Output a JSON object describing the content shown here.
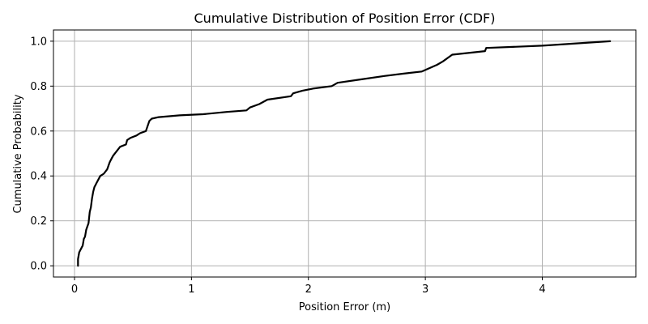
{
  "chart_data": {
    "type": "line",
    "title": "Cumulative Distribution of Position Error (CDF)",
    "xlabel": "Position Error (m)",
    "ylabel": "Cumulative Probability",
    "xlim": [
      -0.18,
      4.8
    ],
    "ylim": [
      -0.05,
      1.05
    ],
    "xticks": [
      0,
      1,
      2,
      3,
      4
    ],
    "yticks": [
      0.0,
      0.2,
      0.4,
      0.6,
      0.8,
      1.0
    ],
    "xtick_labels": [
      "0",
      "1",
      "2",
      "3",
      "4"
    ],
    "ytick_labels": [
      "0.0",
      "0.2",
      "0.4",
      "0.6",
      "0.8",
      "1.0"
    ],
    "grid": true,
    "line_color": "#000000",
    "grid_color": "#b0b0b0",
    "series": [
      {
        "x": [
          0.03,
          0.03,
          0.04,
          0.05,
          0.07,
          0.08,
          0.09,
          0.1,
          0.12,
          0.13,
          0.14,
          0.15,
          0.16,
          0.17,
          0.19,
          0.22,
          0.25,
          0.28,
          0.3,
          0.31,
          0.33,
          0.36,
          0.39,
          0.44,
          0.45,
          0.48,
          0.53,
          0.56,
          0.61,
          0.64,
          0.66,
          0.72,
          0.9,
          1.1,
          1.3,
          1.47,
          1.5,
          1.58,
          1.65,
          1.85,
          1.87,
          1.95,
          2.05,
          2.2,
          2.25,
          2.45,
          2.65,
          2.8,
          2.97,
          3.1,
          3.15,
          3.23,
          3.51,
          3.52,
          4.0,
          4.58
        ],
        "y": [
          0.0,
          0.03,
          0.06,
          0.07,
          0.09,
          0.12,
          0.13,
          0.16,
          0.19,
          0.24,
          0.26,
          0.3,
          0.33,
          0.35,
          0.37,
          0.4,
          0.41,
          0.43,
          0.46,
          0.47,
          0.49,
          0.51,
          0.53,
          0.54,
          0.56,
          0.57,
          0.58,
          0.59,
          0.6,
          0.645,
          0.655,
          0.662,
          0.67,
          0.675,
          0.685,
          0.692,
          0.705,
          0.72,
          0.74,
          0.755,
          0.768,
          0.78,
          0.79,
          0.8,
          0.815,
          0.83,
          0.845,
          0.855,
          0.865,
          0.895,
          0.91,
          0.94,
          0.956,
          0.97,
          0.98,
          1.0
        ]
      }
    ]
  }
}
